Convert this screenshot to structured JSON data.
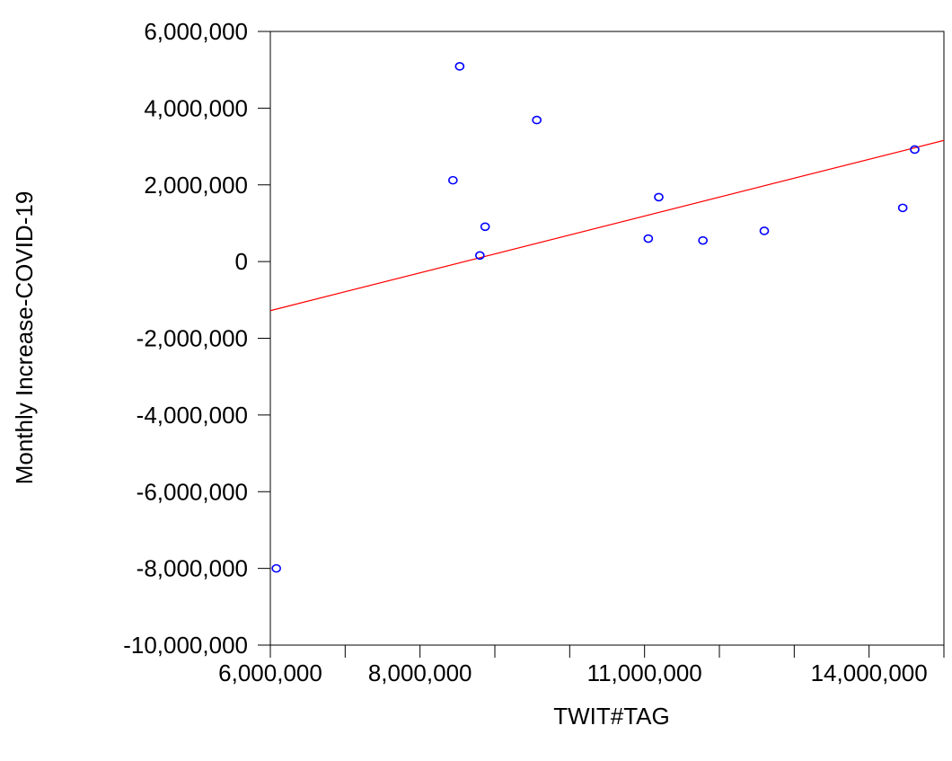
{
  "chart_data": {
    "type": "scatter",
    "title": "",
    "xlabel": "TWIT#TAG",
    "ylabel": "Monthly Increase-COVID-19",
    "xlim": [
      6000000,
      15000000
    ],
    "ylim": [
      -10000000,
      6000000
    ],
    "x_ticks": [
      6000000,
      7000000,
      8000000,
      9000000,
      10000000,
      11000000,
      12000000,
      13000000,
      14000000,
      15000000
    ],
    "x_tick_labels": [
      "6,000,000",
      "",
      "8,000,000",
      "",
      "",
      "11,000,000",
      "",
      "",
      "14,000,000",
      ""
    ],
    "y_ticks": [
      6000000,
      4000000,
      2000000,
      0,
      -2000000,
      -4000000,
      -6000000,
      -8000000,
      -10000000
    ],
    "y_tick_labels": [
      "6,000,000",
      "4,000,000",
      "2,000,000",
      "0",
      "-2,000,000",
      "-4,000,000",
      "-6,000,000",
      "-8,000,000",
      "-10,000,000"
    ],
    "grid": false,
    "point_color": "#0000ff",
    "line_color": "#ff0000",
    "points": [
      {
        "x": 6080000,
        "y": -8000000
      },
      {
        "x": 8440000,
        "y": 2120000
      },
      {
        "x": 8530000,
        "y": 5090000
      },
      {
        "x": 8800000,
        "y": 160000
      },
      {
        "x": 8870000,
        "y": 910000
      },
      {
        "x": 9560000,
        "y": 3690000
      },
      {
        "x": 11050000,
        "y": 600000
      },
      {
        "x": 11190000,
        "y": 1680000
      },
      {
        "x": 11780000,
        "y": 550000
      },
      {
        "x": 12600000,
        "y": 800000
      },
      {
        "x": 14450000,
        "y": 1400000
      },
      {
        "x": 14610000,
        "y": 2920000
      }
    ],
    "fit_line": {
      "x": [
        6000000,
        15000000
      ],
      "y": [
        -1280000,
        3160000
      ]
    }
  }
}
